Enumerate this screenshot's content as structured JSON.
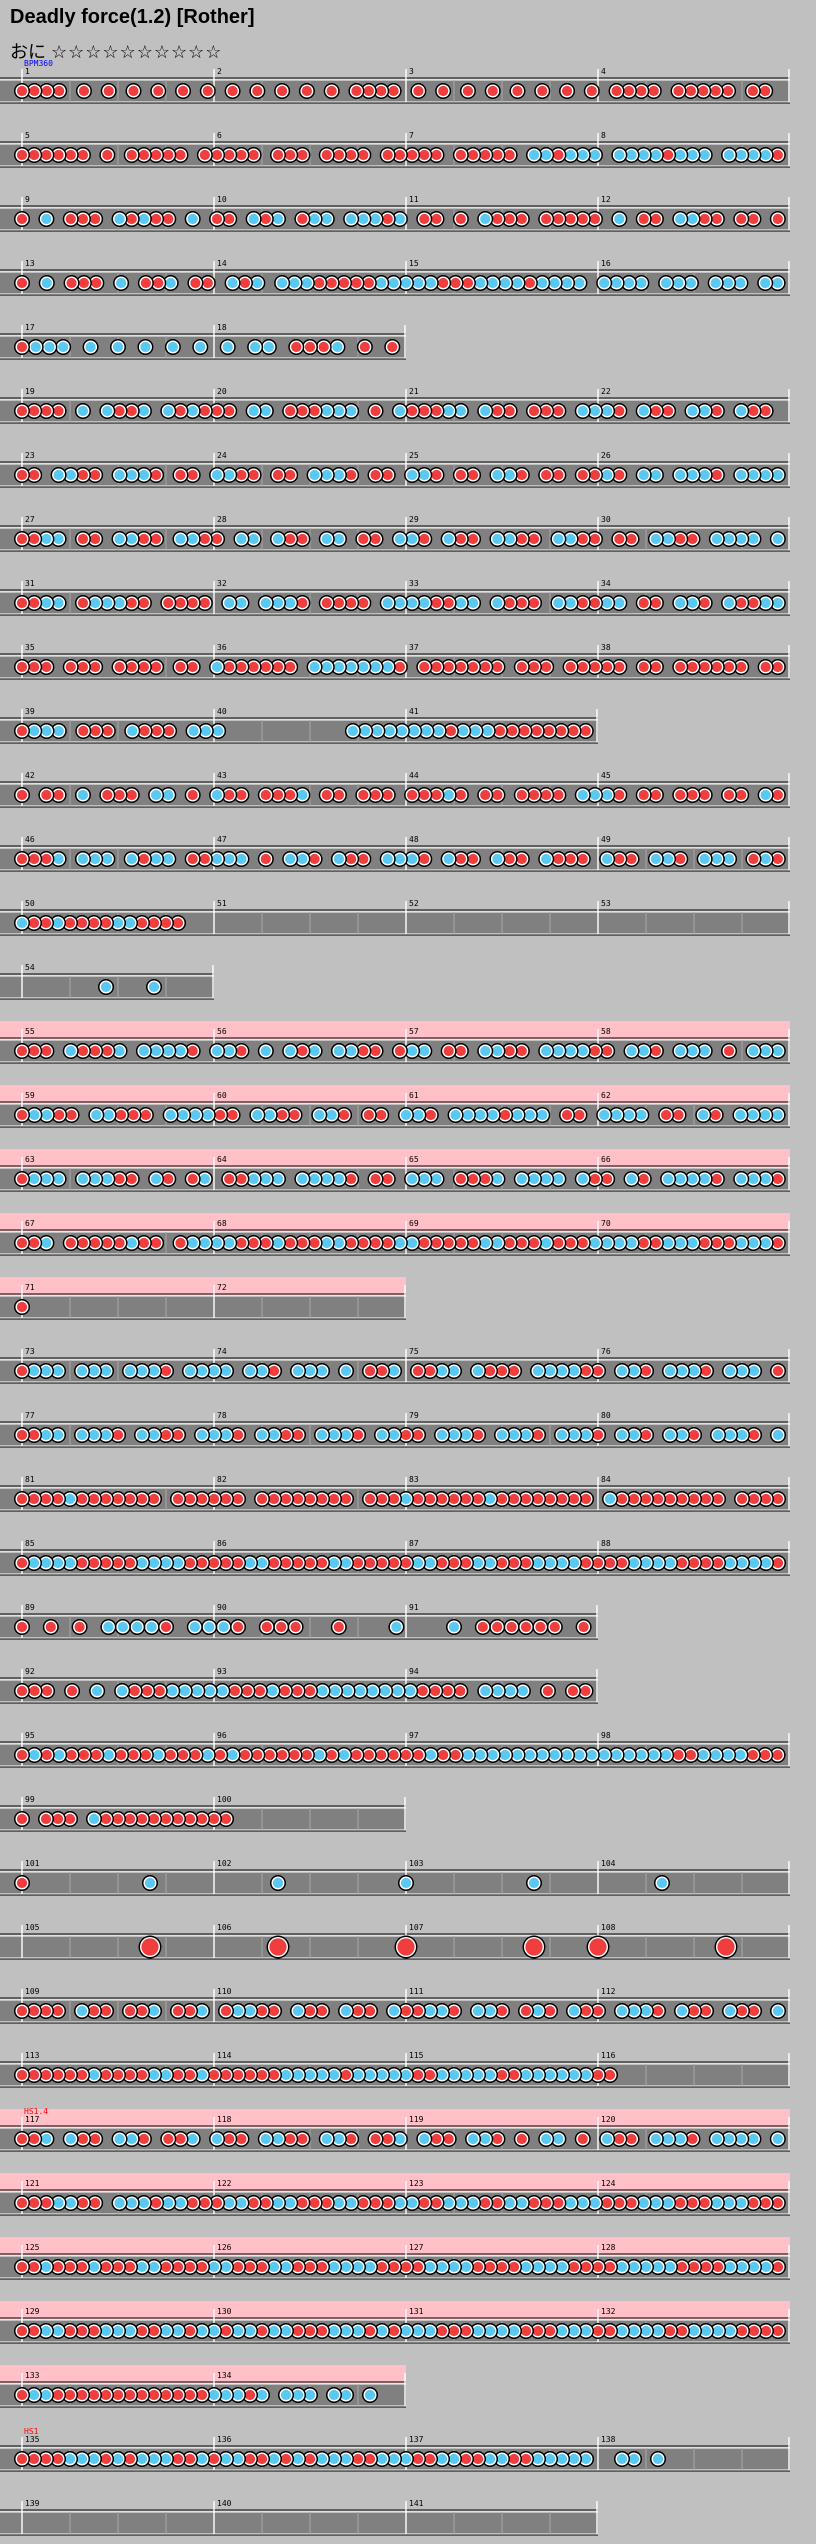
{
  "song": {
    "title": "Deadly force(1.2) [Rother]",
    "course_label": "おに",
    "stars": "☆☆☆☆☆☆☆☆☆☆"
  },
  "colors": {
    "background": "#c0c0c0",
    "lane": "#808080",
    "gogo_band": "#ffc0c8",
    "don": "#ef3e3e",
    "ka": "#5ac8f0",
    "bpm_text": "#0000ff",
    "hs_text": "#ff0000"
  },
  "annotations": [
    {
      "row": 0,
      "text": "BPM360",
      "color": "#0000ff"
    },
    {
      "row": 32,
      "text": "HS1.4",
      "color": "#ff0000"
    },
    {
      "row": 37,
      "text": "HS1",
      "color": "#ff0000"
    }
  ],
  "rows": [
    {
      "len": 4,
      "start": 1,
      "notes": [
        "dddd.d.d.d.d.d.d.d.d.d.d.d.dddd.d.d.d.d.d.d.d.d.dddd.ddddd.dd."
      ]
    },
    {
      "len": 4,
      "start": 5,
      "notes": [
        "dddddd.d.ddddd.ddddd.ddd.dddd.ddddd.ddddd.kkdkkk.kkkkdkkk.kkkkd"
      ]
    },
    {
      "len": 4,
      "start": 9,
      "notes": [
        "d.k.ddd.kdkdd.k.dd.kdk.dkk.kkkdk.dd.d.kddd.ddddd.k.dd.kkdd.dd.d"
      ]
    },
    {
      "len": 4,
      "start": 13,
      "notes": [
        "d.k.ddd.k.ddk.dd.kdk.kkkdddddkkkkkdddkkkkdkkkk.kkkk.kkk.kkk.kk"
      ]
    },
    {
      "len": 2,
      "start": 17,
      "notes": [
        "dkkk.k.k.k.k.k.k.kk.dddk.d.d"
      ]
    },
    {
      "len": 4,
      "start": 19,
      "notes": [
        "dddd.k.kddk.kdkddd.kk.dddkkk.d.kdddkk.kdd.ddd.kkkd.kdd.kkd.kdd."
      ]
    },
    {
      "len": 4,
      "start": 23,
      "notes": [
        "dd.kkdd.kkkd.dd.kkdd.dd.kkkd.dd.kkd.dd.kkd.dd.ddkd.kk.kkkd.kkkk"
      ]
    },
    {
      "len": 4,
      "start": 27,
      "notes": [
        "ddkk.dd.kkdd.kkdd.kk.kdd.kk.dd.kkd.kdd.kkdd.kkdd.dd.kkdd.kkkk.k"
      ]
    },
    {
      "len": 4,
      "start": 31,
      "notes": [
        "ddkk.dkkkdd.dddd.kk.kkkd.dddd.kkkkddkk.kddd.kkddkk.dd.kkd.kddkk"
      ]
    },
    {
      "len": 4,
      "start": 35,
      "notes": [
        "ddd.ddd.dddd.dd.kdddddd.kkkkkkkd.ddddddd.ddd.ddddd.dd.dddddd.dd"
      ]
    },
    {
      "len": 3,
      "start": 39,
      "notes": [
        "dkkk.ddd.kddd.kkk..........kkkkkkkkdkkkdddddddd"
      ]
    },
    {
      "len": 4,
      "start": 42,
      "notes": [
        "d.dd.k.ddd.kk.d.kdd.dddk.dd.ddd.dddkd.dd.dddd.kkkd.dd.ddd.dd.kd"
      ]
    },
    {
      "len": 4,
      "start": 46,
      "notes": [
        "dddk.kkk.kdkk.ddkkk.d.kkd.kdd.kkkd.kdd.kdd.kddd.kdd.kkd.kkk.dkd"
      ]
    },
    {
      "len": 4,
      "start": 50,
      "notes": [
        "kddkddddkkdddd.................................................."
      ]
    },
    {
      "len": 1,
      "start": 54,
      "notes": [
        ".......k...k...."
      ]
    },
    {
      "len": 4,
      "start": 55,
      "gogo": true,
      "notes": [
        "ddd.kdddk.kkkkd.kkd.k.kdk.kkdd.dkk.dd.kkdd.kkkkdd.kkd.kkk.d.kkk"
      ]
    },
    {
      "len": 4,
      "start": 59,
      "gogo": true,
      "notes": [
        "dkkdd.kkddd.kkkkdd.kkdd.kkd.dd.kkd.kkkkdkkk.dd.kkkk.dd.kd.kkkk"
      ]
    },
    {
      "len": 4,
      "start": 63,
      "gogo": true,
      "notes": [
        "dkkk.kkkdd.kd.dk.ddkkk.kkkkd.dd.kkk.dddk.kkkk.kdd.kd.kkkkd.kkkd"
      ]
    },
    {
      "len": 4,
      "start": 67,
      "gogo": true,
      "notes": [
        "ddk.dddddkdd.dkkkkdddkdddkkddddkkdddddkkdddkdddkkkkddkkkdddkkkd"
      ]
    },
    {
      "len": 2,
      "start": 71,
      "gogo": true,
      "notes": [
        "d..............................."
      ]
    },
    {
      "len": 4,
      "start": 73,
      "notes": [
        "dkkk.kkk.kkkd.kkkk.kkd.kkk.k.ddk.ddkk.kddd.kkkkdd.kkd.kkkd.kkk.d"
      ]
    },
    {
      "len": 4,
      "start": 77,
      "notes": [
        "ddkk.kkkd.kkdd.kkkd.kkdd.kkkd.kkdd.kkkd.kkkd.kkkd.kkd.kkd.kkkd.k"
      ]
    },
    {
      "len": 4,
      "start": 81,
      "notes": [
        "ddddkddddddd.dddddd.dddddddd.dddkddddddkdddddddd.kddddddddd.dddd"
      ]
    },
    {
      "len": 4,
      "start": 85,
      "notes": [
        "dkkkkdddddkkkkdddddkkdddddkkdddddkkdddkkdddkkkkddddkkkkddddkkkkd"
      ]
    },
    {
      "len": 3,
      "start": 89,
      "notes": [
        "d.d.d.kkkkd.kkkd.ddd..d...k...k.dddddd.d"
      ]
    },
    {
      "len": 3,
      "start": 92,
      "notes": [
        "ddd.d.k.kdddkkkkkdddkdddkkkkkkkkdddd.kkkk.d.dd"
      ]
    },
    {
      "len": 4,
      "start": 95,
      "notes": [
        "dkdkdddkdddkdddkdkddddddkdkddddddkddkkkkkkkkkkkkkkkkkddkkkkddd"
      ]
    },
    {
      "len": 2,
      "start": 99,
      "notes": [
        "d.ddd.kddddddddddd.............."
      ]
    },
    {
      "len": 4,
      "start": 101,
      "notes": [
        "d.......k.......k.......k.......k.......k......."
      ]
    },
    {
      "len": 4,
      "start": 105,
      "notes": [
        "........D.......D.......D.......D...D.......D..."
      ]
    },
    {
      "len": 4,
      "start": 109,
      "notes": [
        "dddd.kdd.ddk.ddk.dkkdd.kdd.kdd.kddkkd.kkd.dkd.kdd.kkkd.kdd.kdd.k"
      ]
    },
    {
      "len": 4,
      "start": 113,
      "notes": [
        "ddddddkddddkkddkddddddkkkkkdkkkkkddkkkkkddkkkkkkdd.............."
      ]
    },
    {
      "len": 4,
      "start": 117,
      "gogo": true,
      "notes": [
        "ddk.kdd.kkd.ddk.kdd.kkdd.kkd.ddk.kdd.kkd.d.kk.d.kdd.kkkd.kkkk.k"
      ]
    },
    {
      "len": 4,
      "start": 121,
      "gogo": true,
      "notes": [
        "dddkkdd.kkkdkkdddkkddkkdddkkdddkkddkkkddkkdddkkkdddkkkdddkkkddd"
      ]
    },
    {
      "len": 4,
      "start": 125,
      "gogo": true,
      "notes": [
        "ddkdddkdddkkddddkkdddkkdddkkkkddddkkkkddddkkkkddddkkkkkddddkkkkd"
      ]
    },
    {
      "len": 4,
      "start": 129,
      "gogo": true,
      "notes": [
        "ddkkdddkkkddkkdkkdkkdkkdddkkkdkdkkkdddkkkkdddkkkddkkkkddkkkkdddd"
      ]
    },
    {
      "len": 2,
      "start": 133,
      "gogo": true,
      "notes": [
        "dkkdddddddddddddkkkdk.kkk.kk.k.."
      ]
    },
    {
      "len": 4,
      "start": 135,
      "notes": [
        "ddddkkkdkdkkkddkdkkddkdkdkkkddkkkddkkddkkddkkkkk..kk.k.........."
      ]
    },
    {
      "len": 3,
      "start": 139,
      "notes": [
        "................................................"
      ]
    }
  ]
}
